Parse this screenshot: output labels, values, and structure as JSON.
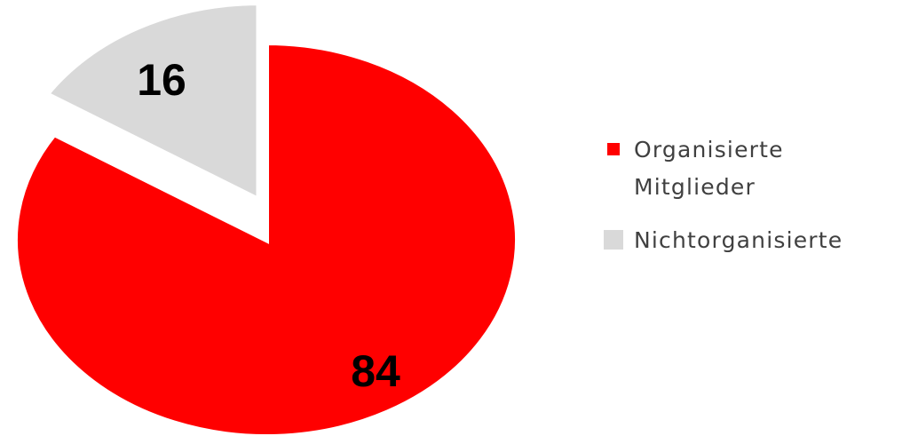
{
  "chart_data": {
    "type": "pie",
    "categories": [
      "Organisierte Mitglieder",
      "Nichtorganisierte"
    ],
    "values": [
      84,
      16
    ],
    "colors": [
      "#ff0000",
      "#d9d9d9"
    ],
    "exploded": [
      false,
      true
    ],
    "legend_position": "right",
    "legend": [
      {
        "lines": [
          "Organisierte",
          "Mitglieder"
        ],
        "color": "#ff0000"
      },
      {
        "lines": [
          "Nichtorganisierte"
        ],
        "color": "#d9d9d9"
      }
    ],
    "data_labels": [
      "84",
      "16"
    ]
  }
}
